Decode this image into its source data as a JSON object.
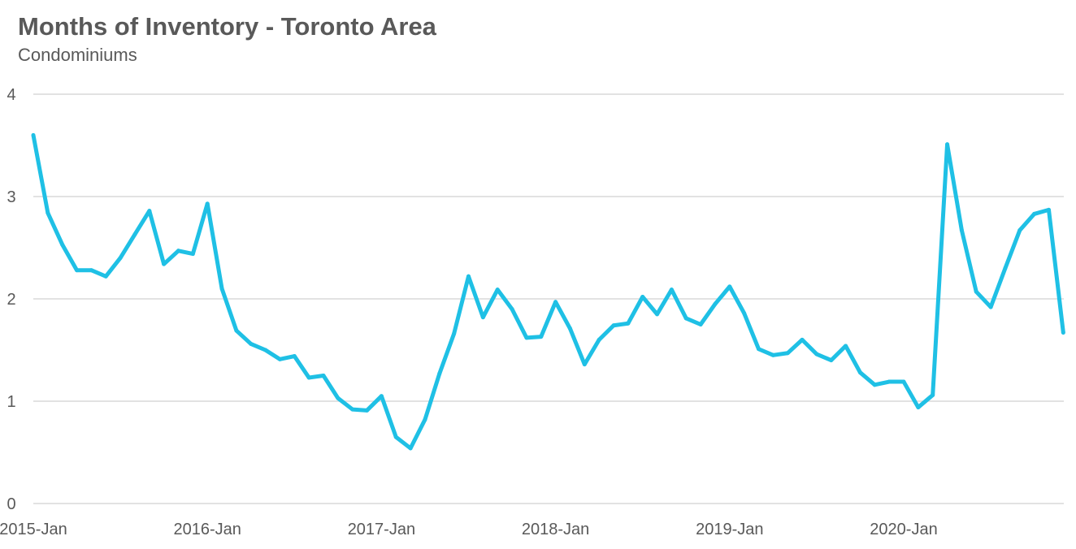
{
  "chart_data": {
    "type": "line",
    "title": "Months of Inventory - Toronto Area",
    "subtitle": "Condominiums",
    "xlabel": "",
    "ylabel": "",
    "ylim": [
      0,
      4
    ],
    "yticks": [
      "0",
      "1",
      "2",
      "3",
      "4"
    ],
    "xtick_labels": [
      "2015-Jan",
      "2016-Jan",
      "2017-Jan",
      "2018-Jan",
      "2019-Jan",
      "2020-Jan"
    ],
    "grid": true,
    "line_color": "#1FC0E5",
    "series": [
      {
        "x": [
          "2015-01",
          "2015-02",
          "2015-03",
          "2015-04",
          "2015-05",
          "2015-06",
          "2015-07",
          "2015-08",
          "2015-09",
          "2015-10",
          "2015-11",
          "2015-12",
          "2016-01",
          "2016-02",
          "2016-03",
          "2016-04",
          "2016-05",
          "2016-06",
          "2016-07",
          "2016-08",
          "2016-09",
          "2016-10",
          "2016-11",
          "2016-12",
          "2017-01",
          "2017-02",
          "2017-03",
          "2017-04",
          "2017-05",
          "2017-06",
          "2017-07",
          "2017-08",
          "2017-09",
          "2017-10",
          "2017-11",
          "2017-12",
          "2018-01",
          "2018-02",
          "2018-03",
          "2018-04",
          "2018-05",
          "2018-06",
          "2018-07",
          "2018-08",
          "2018-09",
          "2018-10",
          "2018-11",
          "2018-12",
          "2019-01",
          "2019-02",
          "2019-03",
          "2019-04",
          "2019-05",
          "2019-06",
          "2019-07",
          "2019-08",
          "2019-09",
          "2019-10",
          "2019-11",
          "2019-12",
          "2020-01",
          "2020-02",
          "2020-03",
          "2020-04",
          "2020-05",
          "2020-06",
          "2020-07",
          "2020-08",
          "2020-09",
          "2020-10",
          "2020-11",
          "2020-12"
        ],
        "values": [
          3.6,
          2.84,
          2.53,
          2.28,
          2.28,
          2.22,
          2.4,
          2.63,
          2.86,
          2.34,
          2.47,
          2.44,
          2.93,
          2.1,
          1.69,
          1.56,
          1.5,
          1.41,
          1.44,
          1.23,
          1.25,
          1.03,
          0.92,
          0.91,
          1.05,
          0.65,
          0.54,
          0.82,
          1.27,
          1.66,
          2.22,
          1.82,
          2.09,
          1.9,
          1.62,
          1.63,
          1.97,
          1.71,
          1.36,
          1.6,
          1.74,
          1.76,
          2.02,
          1.85,
          2.09,
          1.81,
          1.75,
          1.95,
          2.12,
          1.86,
          1.51,
          1.45,
          1.47,
          1.6,
          1.46,
          1.4,
          1.54,
          1.28,
          1.16,
          1.19,
          1.19,
          0.94,
          1.06,
          3.51,
          2.67,
          2.07,
          1.92,
          2.3,
          2.67,
          2.83,
          2.87,
          1.67
        ]
      }
    ]
  }
}
